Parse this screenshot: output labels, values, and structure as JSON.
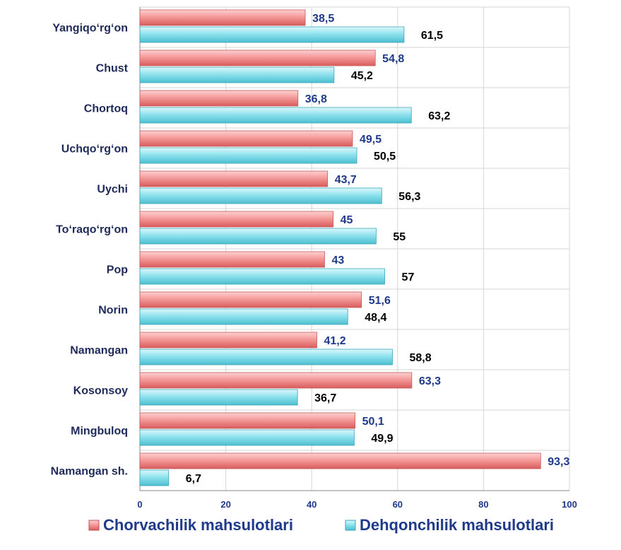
{
  "chart_data": {
    "type": "bar",
    "orientation": "horizontal",
    "categories": [
      "Yangiqo‘rg‘on",
      "Chust",
      "Chortoq",
      "Uchqo‘rg‘on",
      "Uychi",
      "To‘raqo‘rg‘on",
      "Pop",
      "Norin",
      "Namangan",
      "Kosonsoy",
      "Mingbuloq",
      "Namangan sh."
    ],
    "series": [
      {
        "name": "Chorvachilik mahsulotlari",
        "color": "#f08080",
        "values": [
          38.5,
          54.8,
          36.8,
          49.5,
          43.7,
          45,
          43,
          51.6,
          41.2,
          63.3,
          50.1,
          93.3
        ],
        "labels": [
          "38,5",
          "54,8",
          "36,8",
          "49,5",
          "43,7",
          "45",
          "43",
          "51,6",
          "41,2",
          "63,3",
          "50,1",
          "93,3"
        ]
      },
      {
        "name": "Dehqonchilik mahsulotlari",
        "color": "#7fdcec",
        "values": [
          61.5,
          45.2,
          63.2,
          50.5,
          56.3,
          55,
          57,
          48.4,
          58.8,
          36.7,
          49.9,
          6.7
        ],
        "labels": [
          "61,5",
          "45,2",
          "63,2",
          "50,5",
          "56,3",
          "55",
          "57",
          "48,4",
          "58,8",
          "36,7",
          "49,9",
          "6,7"
        ]
      }
    ],
    "xlim": [
      0,
      100
    ],
    "xticks": [
      0,
      20,
      40,
      60,
      80,
      100
    ],
    "xtick_labels": [
      "0",
      "20",
      "40",
      "60",
      "80",
      "100"
    ],
    "grid": true,
    "legend": "bottom"
  }
}
